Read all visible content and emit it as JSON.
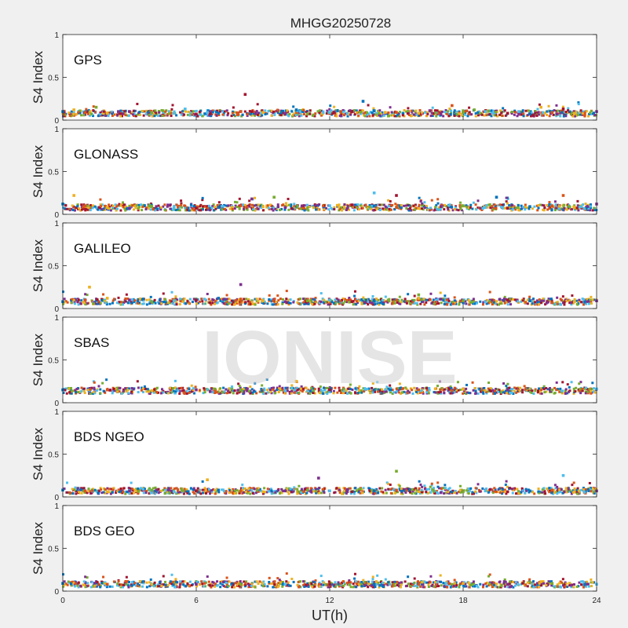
{
  "chart_data": {
    "type": "scatter",
    "title": "MHGG20250728",
    "xlabel": "UT(h)",
    "ylabel": "S4 Index",
    "xlim": [
      0,
      24
    ],
    "ylim": [
      0,
      1
    ],
    "xticks": [
      "0",
      "6",
      "12",
      "18",
      "24"
    ],
    "yticks": [
      "0",
      "0.5",
      "1"
    ],
    "grid": false,
    "watermark": "IONISE",
    "colors": [
      "#0072bd",
      "#d95319",
      "#edb120",
      "#7e2f8e",
      "#77ac30",
      "#4dbeee",
      "#a2142f"
    ],
    "panels": [
      {
        "label": "GPS",
        "baseline": 0.08,
        "series": [
          {
            "x": [
              0,
              1,
              2,
              3,
              4,
              5,
              6,
              7,
              8,
              9,
              10,
              11,
              12,
              13,
              14,
              15,
              16,
              17,
              18,
              19,
              20,
              21,
              22,
              23,
              24
            ],
            "y": [
              0.1,
              0.09,
              0.08,
              0.1,
              0.09,
              0.08,
              0.07,
              0.08,
              0.1,
              0.09,
              0.08,
              0.07,
              0.09,
              0.1,
              0.11,
              0.09,
              0.08,
              0.07,
              0.09,
              0.1,
              0.08,
              0.07,
              0.09,
              0.08,
              0.1
            ]
          },
          {
            "x": [
              0.5,
              2.5,
              4.5,
              6.5,
              8.5,
              10.5,
              12.5,
              14.5,
              16.5,
              18.5,
              20.5,
              22.5
            ],
            "y": [
              0.12,
              0.1,
              0.11,
              0.09,
              0.1,
              0.12,
              0.1,
              0.09,
              0.11,
              0.12,
              0.1,
              0.13
            ]
          },
          {
            "x": [
              1.5,
              5.5,
              8.2,
              13.5,
              17.5,
              21.5
            ],
            "y": [
              0.15,
              0.13,
              0.3,
              0.22,
              0.17,
              0.15
            ]
          }
        ]
      },
      {
        "label": "GLONASS",
        "baseline": 0.08,
        "series": [
          {
            "x": [
              0,
              1,
              2,
              3,
              4,
              5,
              6,
              7,
              8,
              9,
              10,
              11,
              12,
              13,
              14,
              15,
              16,
              17,
              18,
              19,
              20,
              21,
              22,
              23,
              24
            ],
            "y": [
              0.12,
              0.1,
              0.08,
              0.07,
              0.09,
              0.08,
              0.07,
              0.08,
              0.1,
              0.09,
              0.08,
              0.07,
              0.1,
              0.11,
              0.1,
              0.08,
              0.07,
              0.09,
              0.1,
              0.08,
              0.07,
              0.09,
              0.1,
              0.08,
              0.12
            ]
          },
          {
            "x": [
              0.5,
              8.5,
              9.5,
              14.0,
              15.0,
              19.5,
              22.5
            ],
            "y": [
              0.22,
              0.18,
              0.2,
              0.25,
              0.22,
              0.2,
              0.22
            ]
          }
        ]
      },
      {
        "label": "GALILEO",
        "baseline": 0.08,
        "series": [
          {
            "x": [
              0,
              1,
              2,
              3,
              4,
              5,
              6,
              7,
              8,
              9,
              10,
              11,
              12,
              13,
              14,
              15,
              16,
              17,
              18,
              19,
              20,
              21,
              22,
              23,
              24
            ],
            "y": [
              0.08,
              0.1,
              0.12,
              0.1,
              0.08,
              0.09,
              0.1,
              0.12,
              0.11,
              0.09,
              0.08,
              0.09,
              0.1,
              0.08,
              0.09,
              0.1,
              0.12,
              0.11,
              0.09,
              0.08,
              0.1,
              0.09,
              0.07,
              0.08,
              0.09
            ]
          },
          {
            "x": [
              1.2,
              8.0,
              16.0
            ],
            "y": [
              0.25,
              0.28,
              0.16
            ]
          }
        ]
      },
      {
        "label": "SBAS",
        "baseline": 0.14,
        "series": [
          {
            "x": [
              0,
              2,
              4,
              6,
              8,
              10,
              12,
              14,
              16,
              18,
              20,
              22,
              24
            ],
            "y": [
              0.15,
              0.15,
              0.14,
              0.15,
              0.15,
              0.14,
              0.15,
              0.15,
              0.15,
              0.16,
              0.15,
              0.15,
              0.16
            ]
          },
          {
            "x": [
              10.5
            ],
            "y": [
              0.25
            ]
          }
        ]
      },
      {
        "label": "BDS NGEO",
        "baseline": 0.07,
        "series": [
          {
            "x": [
              0,
              1,
              2,
              3,
              4,
              5,
              6,
              7,
              8,
              9,
              10,
              11,
              12,
              13,
              14,
              15,
              16,
              17,
              18,
              19,
              20,
              21,
              22,
              23,
              24
            ],
            "y": [
              0.08,
              0.07,
              0.06,
              0.07,
              0.08,
              0.06,
              0.07,
              0.08,
              0.07,
              0.06,
              0.07,
              0.08,
              0.07,
              0.06,
              0.07,
              0.08,
              0.06,
              0.05,
              0.06,
              0.07,
              0.06,
              0.07,
              0.08,
              0.06,
              0.07
            ]
          },
          {
            "x": [
              6.5,
              11.5,
              15.0,
              22.5
            ],
            "y": [
              0.2,
              0.22,
              0.3,
              0.25
            ]
          }
        ]
      },
      {
        "label": "BDS GEO",
        "baseline": 0.08,
        "series": [
          {
            "x": [
              0,
              2,
              4,
              6,
              8,
              10,
              12,
              14,
              16,
              18,
              20,
              22,
              24
            ],
            "y": [
              0.09,
              0.08,
              0.08,
              0.08,
              0.08,
              0.08,
              0.08,
              0.08,
              0.08,
              0.09,
              0.08,
              0.09,
              0.08
            ]
          },
          {
            "x": [
              21.5
            ],
            "y": [
              0.11
            ]
          }
        ]
      }
    ]
  }
}
